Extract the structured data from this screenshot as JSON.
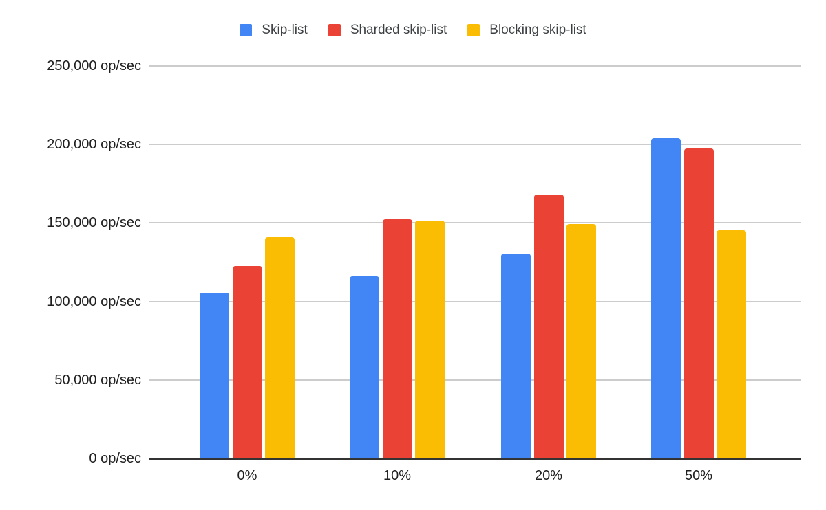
{
  "chart_data": {
    "type": "bar",
    "categories": [
      "0%",
      "10%",
      "20%",
      "50%"
    ],
    "series": [
      {
        "name": "Skip-list",
        "color": "#4285F4",
        "values": [
          105500,
          116000,
          130500,
          204000
        ]
      },
      {
        "name": "Sharded skip-list",
        "color": "#EA4335",
        "values": [
          122500,
          152500,
          168000,
          197500
        ]
      },
      {
        "name": "Blocking skip-list",
        "color": "#FBBC04",
        "values": [
          141000,
          151500,
          149500,
          145500
        ]
      }
    ],
    "y_ticks": [
      {
        "value": 0,
        "label": "0 op/sec"
      },
      {
        "value": 50000,
        "label": "50,000 op/sec"
      },
      {
        "value": 100000,
        "label": "100,000 op/sec"
      },
      {
        "value": 150000,
        "label": "150,000 op/sec"
      },
      {
        "value": 200000,
        "label": "200,000 op/sec"
      },
      {
        "value": 250000,
        "label": "250,000 op/sec"
      }
    ],
    "ylim": [
      0,
      250000
    ],
    "ylabel_unit": "op/sec",
    "grid": true,
    "legend_position": "top"
  },
  "colors": {
    "gridline": "#cccccc",
    "axis_line": "#333333",
    "axis_text": "#1f1f1f",
    "legend_text": "#3c4043",
    "background": "#ffffff"
  }
}
